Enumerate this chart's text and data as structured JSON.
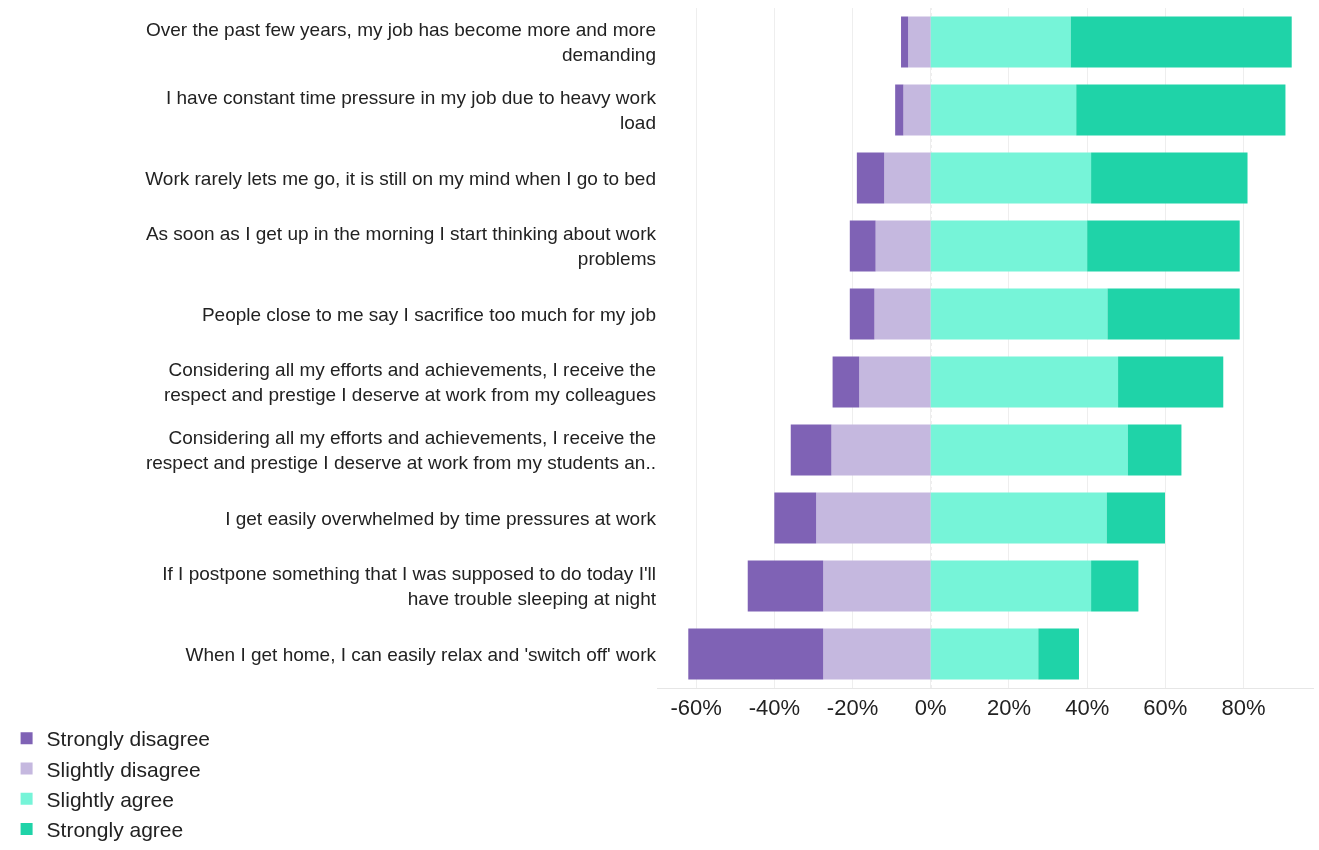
{
  "chart_data": {
    "type": "bar",
    "orientation": "horizontal",
    "stacked": true,
    "categories": [
      "Over the past few years, my job has become more and more\ndemanding",
      "I have constant time pressure in my job due to heavy work\nload",
      "Work rarely lets me go, it is still on my mind when I go to bed",
      "As soon as I get up in the morning I start thinking about work\nproblems",
      "People close to me say I sacrifice too much for my job",
      "Considering all my efforts and achievements, I receive the\nrespect and prestige I deserve at work from my colleagues",
      "Considering all my efforts and achievements, I receive the\nrespect and prestige I deserve at work from my students an..",
      "I get easily overwhelmed by time pressures at work",
      "If I postpone something that I was supposed to do today I'll\nhave trouble sleeping at night",
      "When I get home, I can easily relax and 'switch off' work"
    ],
    "series": [
      {
        "name": "Slightly disagree",
        "color": "#c5b8df",
        "values": [
          -5.8,
          -7.0,
          -11.9,
          -14.1,
          -14.4,
          -18.3,
          -25.4,
          -29.3,
          -27.5,
          -27.5
        ]
      },
      {
        "name": "Strongly disagree",
        "color": "#7f62b5",
        "values": [
          -1.8,
          -2.1,
          -7.0,
          -6.6,
          -6.3,
          -6.8,
          -10.4,
          -10.7,
          -19.3,
          -34.5
        ]
      },
      {
        "name": "Slightly agree",
        "color": "#76f4d8",
        "values": [
          35.8,
          37.2,
          41.0,
          40.0,
          45.2,
          47.9,
          50.4,
          45.0,
          41.0,
          27.5
        ]
      },
      {
        "name": "Strongly agree",
        "color": "#1fd3a8",
        "values": [
          56.5,
          53.5,
          40.0,
          39.0,
          33.8,
          26.9,
          13.7,
          14.9,
          12.1,
          10.4
        ]
      }
    ],
    "xlim": [
      -70,
      98
    ],
    "xticks": [
      {
        "value": -60,
        "label": "-60%"
      },
      {
        "value": -40,
        "label": "-40%"
      },
      {
        "value": -20,
        "label": "-20%"
      },
      {
        "value": 0,
        "label": "0%"
      },
      {
        "value": 20,
        "label": "20%"
      },
      {
        "value": 40,
        "label": "40%"
      },
      {
        "value": 60,
        "label": "60%"
      },
      {
        "value": 80,
        "label": "80%"
      }
    ],
    "grid": "x",
    "ref_lines": [
      {
        "axis": "x",
        "value": 0,
        "color": "#bbbbbb",
        "line_style": "dotted"
      }
    ],
    "legend": "bottom left"
  }
}
